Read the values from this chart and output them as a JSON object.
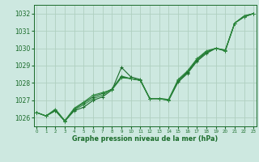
{
  "title": "Graphe pression niveau de la mer (hPa)",
  "bg_color": "#cde8e0",
  "grid_color": "#b0d0c0",
  "line_colors": [
    "#1a6b2a",
    "#2d8a3e",
    "#1a6b2a",
    "#2d8a3e",
    "#1a6b2a"
  ],
  "ylim": [
    1025.5,
    1032.5
  ],
  "xlim": [
    -0.3,
    23.3
  ],
  "xticks": [
    0,
    1,
    2,
    3,
    4,
    5,
    6,
    7,
    8,
    9,
    10,
    11,
    12,
    13,
    14,
    15,
    16,
    17,
    18,
    19,
    20,
    21,
    22,
    23
  ],
  "yticks": [
    1026,
    1027,
    1028,
    1029,
    1030,
    1031,
    1032
  ],
  "series": [
    [
      1026.3,
      1026.1,
      1026.4,
      1025.8,
      1026.4,
      1026.6,
      1027.0,
      1027.2,
      1027.6,
      1028.9,
      1028.35,
      1028.2,
      1027.1,
      1027.1,
      1027.0,
      1028.05,
      1028.55,
      1029.25,
      1029.7,
      1030.0,
      1029.85,
      1031.45,
      1031.8,
      1032.0
    ],
    [
      1026.3,
      1026.1,
      1026.4,
      1025.8,
      1026.45,
      1026.75,
      1027.1,
      1027.3,
      1027.65,
      1028.4,
      1028.25,
      1028.15,
      1027.1,
      1027.1,
      1027.0,
      1028.1,
      1028.6,
      1029.3,
      1029.75,
      1030.0,
      1029.85,
      1031.45,
      1031.82,
      1032.0
    ],
    [
      1026.3,
      1026.1,
      1026.45,
      1025.82,
      1026.5,
      1026.85,
      1027.2,
      1027.4,
      1027.65,
      1028.35,
      1028.25,
      1028.15,
      1027.1,
      1027.1,
      1027.05,
      1028.15,
      1028.65,
      1029.35,
      1029.8,
      1030.0,
      1029.88,
      1031.45,
      1031.85,
      1032.0
    ],
    [
      1026.3,
      1026.1,
      1026.5,
      1025.83,
      1026.55,
      1026.9,
      1027.3,
      1027.45,
      1027.6,
      1028.3,
      1028.25,
      1028.15,
      1027.1,
      1027.1,
      1027.05,
      1028.2,
      1028.7,
      1029.4,
      1029.85,
      1030.0,
      1029.9,
      1031.45,
      1031.87,
      1032.0
    ]
  ]
}
